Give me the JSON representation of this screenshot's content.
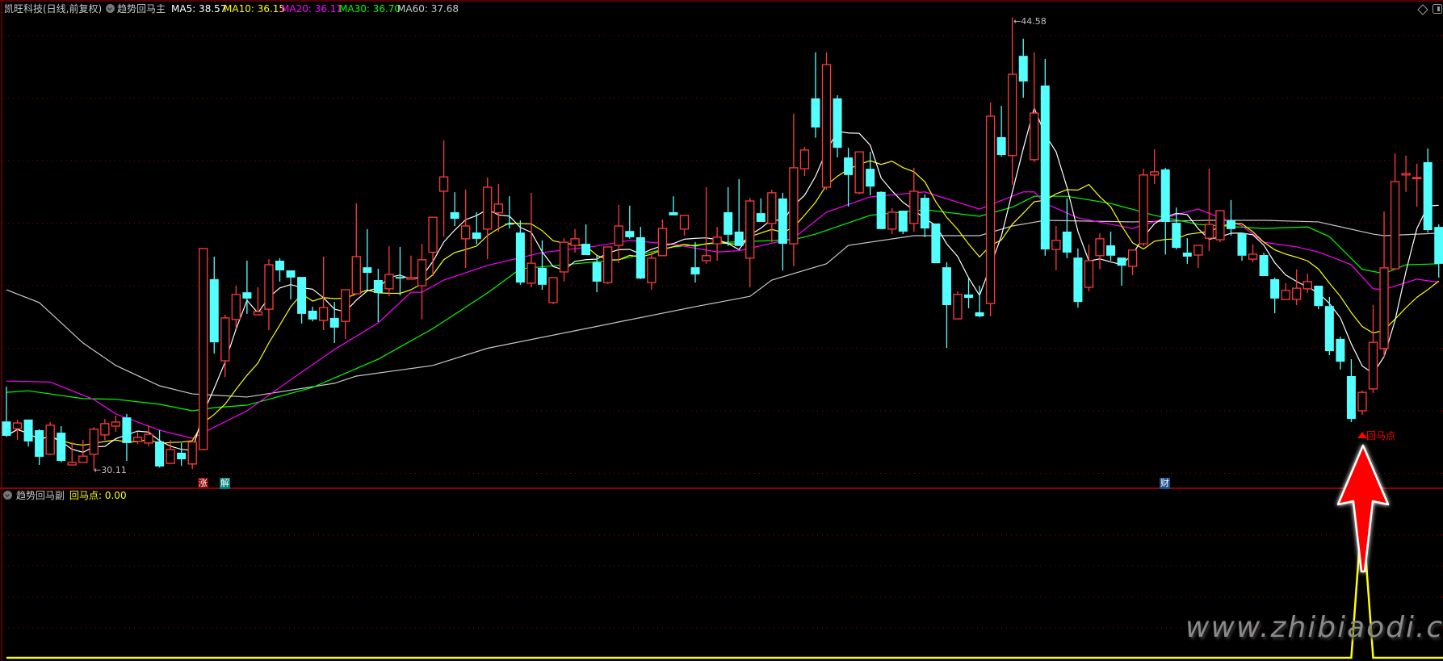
{
  "header": {
    "stock": "凯旺科技(日线,前复权)",
    "indicator_main": "趋势回马主",
    "ma5": "MA5: 38.57",
    "ma10": "MA10: 36.15",
    "ma20": "MA20: 36.11",
    "ma30": "MA30: 36.70",
    "ma60": "MA60: 37.68"
  },
  "sub_panel": {
    "indicator": "趋势回马副",
    "value_label": "回马点: 0.00"
  },
  "badges": {
    "zhang": "涨",
    "jie": "解",
    "cai": "财"
  },
  "signal_label": "回马点",
  "high_label": "44.58",
  "low_label": "30.11",
  "watermark": "www.zhibiaodi.com",
  "colors": {
    "up": "#ff3b3b",
    "down": "#54ffff",
    "ma5": "#ffffff",
    "ma10": "#ffff00",
    "ma20": "#ff00ff",
    "ma30": "#00ff00",
    "ma60": "#c8c8c8",
    "signal": "#ffff00",
    "grid": "#8b0000"
  },
  "chart_data": {
    "type": "candlestick",
    "price_ylim": [
      30,
      44.58
    ],
    "price_gridlines": [
      44,
      42,
      40,
      38,
      36,
      34,
      32,
      30
    ],
    "high": {
      "index": 92,
      "value": 44.58
    },
    "low": {
      "index": 8,
      "value": 30.11
    },
    "ohlc": [
      [
        31.66,
        32.77,
        31.17,
        31.2
      ],
      [
        31.43,
        31.72,
        31.07,
        31.61
      ],
      [
        31.72,
        31.72,
        30.86,
        31.02
      ],
      [
        31.38,
        31.41,
        30.27,
        30.53
      ],
      [
        30.61,
        31.64,
        30.58,
        31.54
      ],
      [
        31.3,
        31.51,
        30.35,
        30.4
      ],
      [
        30.27,
        31.0,
        30.27,
        30.35
      ],
      [
        30.35,
        31.07,
        30.35,
        30.55
      ],
      [
        30.61,
        31.48,
        30.11,
        31.41
      ],
      [
        31.23,
        31.74,
        31.07,
        31.59
      ],
      [
        31.51,
        31.85,
        31.33,
        31.64
      ],
      [
        31.79,
        31.9,
        30.4,
        30.97
      ],
      [
        31.02,
        31.33,
        30.94,
        31.15
      ],
      [
        30.97,
        31.54,
        30.86,
        31.25
      ],
      [
        31.02,
        31.38,
        30.19,
        30.22
      ],
      [
        30.32,
        31.07,
        30.32,
        30.76
      ],
      [
        30.66,
        30.97,
        30.24,
        30.45
      ],
      [
        30.3,
        31.02,
        30.14,
        31.0
      ],
      [
        30.76,
        37.19,
        30.74,
        37.19
      ],
      [
        36.21,
        36.93,
        33.83,
        34.19
      ],
      [
        33.6,
        35.07,
        33.08,
        34.97
      ],
      [
        34.92,
        36.0,
        34.63,
        35.72
      ],
      [
        35.79,
        36.8,
        35.1,
        35.59
      ],
      [
        35.07,
        35.95,
        35.07,
        35.17
      ],
      [
        35.25,
        36.85,
        34.58,
        36.67
      ],
      [
        36.8,
        36.88,
        36.13,
        36.49
      ],
      [
        36.49,
        36.49,
        35.56,
        36.26
      ],
      [
        36.28,
        36.28,
        34.79,
        35.1
      ],
      [
        35.2,
        35.33,
        34.86,
        34.92
      ],
      [
        34.89,
        36.93,
        34.58,
        35.3
      ],
      [
        34.97,
        35.48,
        34.17,
        34.66
      ],
      [
        34.86,
        35.87,
        34.3,
        35.87
      ],
      [
        35.74,
        38.63,
        35.74,
        36.93
      ],
      [
        36.59,
        37.81,
        35.85,
        36.41
      ],
      [
        36.18,
        36.54,
        34.84,
        35.77
      ],
      [
        35.9,
        37.26,
        35.66,
        36.36
      ],
      [
        36.28,
        37.24,
        35.69,
        36.23
      ],
      [
        36.21,
        36.96,
        36.21,
        36.26
      ],
      [
        36.0,
        37.34,
        34.92,
        36.83
      ],
      [
        37.07,
        38.19,
        36.31,
        38.19
      ],
      [
        39.02,
        40.65,
        37.57,
        39.48
      ],
      [
        38.35,
        38.99,
        37.91,
        38.14
      ],
      [
        37.5,
        39.07,
        36.57,
        37.91
      ],
      [
        37.7,
        38.35,
        37.32,
        37.5
      ],
      [
        37.81,
        39.46,
        36.85,
        39.15
      ],
      [
        38.33,
        39.25,
        37.73,
        38.61
      ],
      [
        37.99,
        38.86,
        37.83,
        37.96
      ],
      [
        37.7,
        38.09,
        36.03,
        36.1
      ],
      [
        36.08,
        38.97,
        35.95,
        36.72
      ],
      [
        36.57,
        37.45,
        35.87,
        36.03
      ],
      [
        35.46,
        36.26,
        35.41,
        36.26
      ],
      [
        36.44,
        37.52,
        36.13,
        37.39
      ],
      [
        37.29,
        37.81,
        37.06,
        37.5
      ],
      [
        37.34,
        37.96,
        36.98,
        36.98
      ],
      [
        36.75,
        36.96,
        35.79,
        36.13
      ],
      [
        36.1,
        37.24,
        36.05,
        37.24
      ],
      [
        37.29,
        38.58,
        36.72,
        37.91
      ],
      [
        37.75,
        38.56,
        37.5,
        37.55
      ],
      [
        37.55,
        37.88,
        36.21,
        36.23
      ],
      [
        36.1,
        37.08,
        35.87,
        36.88
      ],
      [
        36.96,
        38.12,
        36.96,
        37.83
      ],
      [
        38.35,
        38.86,
        38.25,
        38.25
      ],
      [
        37.81,
        38.25,
        37.6,
        38.25
      ],
      [
        36.59,
        37.39,
        36.1,
        36.36
      ],
      [
        36.8,
        39.15,
        36.7,
        36.96
      ],
      [
        37.34,
        37.88,
        36.8,
        37.55
      ],
      [
        38.35,
        39.15,
        37.27,
        37.63
      ],
      [
        37.73,
        39.41,
        37.27,
        37.27
      ],
      [
        36.88,
        38.81,
        35.95,
        38.71
      ],
      [
        38.32,
        38.79,
        38.04,
        38.04
      ],
      [
        37.99,
        39.07,
        37.39,
        38.97
      ],
      [
        38.79,
        38.97,
        36.49,
        37.34
      ],
      [
        37.34,
        41.5,
        36.62,
        39.77
      ],
      [
        39.74,
        40.44,
        39.51,
        40.34
      ],
      [
        41.99,
        43.46,
        40.73,
        41.06
      ],
      [
        39.15,
        43.46,
        39.07,
        43.07
      ],
      [
        41.99,
        42.09,
        40.1,
        40.41
      ],
      [
        40.1,
        40.41,
        38.53,
        39.54
      ],
      [
        38.97,
        40.28,
        38.92,
        40.28
      ],
      [
        39.74,
        40.28,
        38.89,
        39.17
      ],
      [
        39.0,
        39.02,
        37.81,
        37.81
      ],
      [
        37.81,
        38.48,
        37.65,
        38.35
      ],
      [
        38.4,
        38.4,
        37.65,
        37.73
      ],
      [
        37.99,
        39.77,
        37.73,
        39.02
      ],
      [
        38.81,
        38.92,
        37.55,
        37.83
      ],
      [
        37.99,
        37.99,
        36.72,
        36.72
      ],
      [
        36.59,
        36.75,
        34.01,
        35.38
      ],
      [
        34.94,
        35.82,
        34.92,
        35.72
      ],
      [
        35.72,
        36.23,
        35.28,
        35.61
      ],
      [
        35.15,
        36.0,
        34.99,
        35.02
      ],
      [
        35.43,
        41.86,
        35.02,
        41.42
      ],
      [
        40.75,
        41.75,
        40.13,
        40.18
      ],
      [
        40.16,
        44.58,
        39.23,
        42.76
      ],
      [
        43.35,
        43.9,
        42.01,
        42.53
      ],
      [
        40.03,
        43.46,
        39.95,
        41.52
      ],
      [
        42.4,
        43.25,
        36.96,
        37.16
      ],
      [
        37.16,
        37.91,
        36.49,
        37.45
      ],
      [
        37.73,
        38.79,
        36.88,
        37.06
      ],
      [
        36.9,
        37.19,
        35.3,
        35.48
      ],
      [
        35.95,
        37.32,
        35.82,
        36.8
      ],
      [
        36.96,
        37.68,
        36.52,
        37.5
      ],
      [
        37.29,
        37.73,
        36.8,
        36.96
      ],
      [
        36.9,
        36.9,
        36.0,
        36.64
      ],
      [
        36.62,
        37.14,
        36.34,
        37.14
      ],
      [
        37.34,
        39.74,
        37.27,
        39.54
      ],
      [
        39.54,
        40.36,
        39.25,
        39.64
      ],
      [
        39.72,
        39.77,
        37.0,
        38.04
      ],
      [
        38.01,
        38.5,
        37.16,
        37.21
      ],
      [
        37.06,
        37.52,
        36.7,
        36.93
      ],
      [
        36.98,
        37.29,
        36.57,
        37.29
      ],
      [
        37.52,
        39.74,
        37.11,
        37.96
      ],
      [
        37.47,
        38.4,
        37.39,
        38.4
      ],
      [
        38.09,
        38.74,
        37.6,
        37.81
      ],
      [
        37.68,
        37.68,
        36.8,
        36.96
      ],
      [
        36.85,
        37.32,
        36.75,
        37.01
      ],
      [
        36.98,
        37.06,
        36.31,
        36.31
      ],
      [
        36.21,
        36.26,
        35.12,
        35.59
      ],
      [
        35.56,
        36.08,
        35.54,
        35.85
      ],
      [
        35.56,
        36.52,
        35.38,
        35.92
      ],
      [
        35.9,
        36.39,
        35.77,
        36.13
      ],
      [
        36.0,
        36.0,
        35.25,
        35.35
      ],
      [
        35.35,
        35.64,
        33.78,
        33.91
      ],
      [
        34.3,
        34.37,
        33.32,
        33.57
      ],
      [
        33.11,
        33.65,
        31.64,
        31.74
      ],
      [
        32.0,
        32.65,
        31.87,
        32.59
      ],
      [
        32.7,
        35.38,
        32.57,
        34.19
      ],
      [
        33.99,
        38.37,
        33.73,
        36.57
      ],
      [
        36.54,
        40.23,
        36.54,
        39.33
      ],
      [
        39.54,
        40.16,
        39.0,
        39.59
      ],
      [
        39.46,
        39.9,
        38.53,
        39.46
      ],
      [
        39.95,
        40.39,
        37.7,
        37.78
      ],
      [
        37.88,
        37.96,
        36.26,
        36.7
      ]
    ],
    "ma20": [
      [
        0,
        32.95
      ],
      [
        4,
        32.92
      ],
      [
        8,
        32.36
      ],
      [
        10,
        31.9
      ],
      [
        14,
        31.38
      ],
      [
        17,
        31.12
      ],
      [
        18,
        31.3
      ],
      [
        22,
        32.0
      ],
      [
        25,
        32.75
      ],
      [
        30,
        33.96
      ],
      [
        34,
        34.81
      ],
      [
        37,
        35.79
      ],
      [
        38,
        35.79
      ],
      [
        40,
        36.18
      ],
      [
        44,
        36.65
      ],
      [
        49,
        37.06
      ],
      [
        54,
        37.27
      ],
      [
        57,
        37.45
      ],
      [
        61,
        37.32
      ],
      [
        65,
        37.08
      ],
      [
        67,
        37.12
      ],
      [
        72,
        37.52
      ],
      [
        75,
        38.35
      ],
      [
        79,
        38.84
      ],
      [
        84,
        39.0
      ],
      [
        89,
        38.45
      ],
      [
        93,
        39.0
      ],
      [
        94,
        39.0
      ],
      [
        95,
        38.63
      ],
      [
        98,
        38.17
      ],
      [
        103,
        37.83
      ],
      [
        107,
        38.27
      ],
      [
        109,
        38.45
      ],
      [
        113,
        37.91
      ],
      [
        115,
        37.39
      ],
      [
        118,
        37.24
      ],
      [
        120,
        37.08
      ],
      [
        123,
        36.67
      ],
      [
        125,
        35.9
      ],
      [
        126,
        35.88
      ],
      [
        129,
        36.21
      ],
      [
        131,
        36.11
      ]
    ],
    "ma30": [
      [
        0,
        32.59
      ],
      [
        2,
        32.64
      ],
      [
        7,
        32.39
      ],
      [
        10,
        32.37
      ],
      [
        14,
        32.21
      ],
      [
        17,
        32.0
      ],
      [
        19,
        32.1
      ],
      [
        22,
        32.18
      ],
      [
        28,
        32.75
      ],
      [
        34,
        33.65
      ],
      [
        39,
        34.63
      ],
      [
        44,
        35.77
      ],
      [
        47,
        36.54
      ],
      [
        51,
        36.67
      ],
      [
        56,
        36.83
      ],
      [
        61,
        37.24
      ],
      [
        66,
        37.39
      ],
      [
        72,
        37.47
      ],
      [
        74,
        37.65
      ],
      [
        79,
        38.25
      ],
      [
        84,
        38.43
      ],
      [
        89,
        38.22
      ],
      [
        92,
        38.51
      ],
      [
        94,
        38.86
      ],
      [
        97,
        38.86
      ],
      [
        101,
        38.63
      ],
      [
        105,
        38.25
      ],
      [
        109,
        37.96
      ],
      [
        115,
        37.83
      ],
      [
        119,
        37.88
      ],
      [
        121,
        37.57
      ],
      [
        124,
        36.52
      ],
      [
        126,
        36.39
      ],
      [
        128,
        36.67
      ],
      [
        131,
        36.7
      ]
    ],
    "ma60": [
      [
        0,
        35.87
      ],
      [
        3,
        35.46
      ],
      [
        7,
        34.17
      ],
      [
        10,
        33.45
      ],
      [
        14,
        32.8
      ],
      [
        17,
        32.54
      ],
      [
        22,
        32.44
      ],
      [
        30,
        32.88
      ],
      [
        32,
        33.11
      ],
      [
        39,
        33.45
      ],
      [
        44,
        34.0
      ],
      [
        63,
        35.33
      ],
      [
        68,
        35.66
      ],
      [
        70,
        36.18
      ],
      [
        75,
        36.7
      ],
      [
        77,
        37.29
      ],
      [
        83,
        37.6
      ],
      [
        89,
        37.6
      ],
      [
        92,
        37.91
      ],
      [
        95,
        38.09
      ],
      [
        103,
        38.04
      ],
      [
        110,
        38.09
      ],
      [
        115,
        38.09
      ],
      [
        120,
        38.04
      ],
      [
        125,
        37.65
      ],
      [
        126,
        37.6
      ],
      [
        131,
        37.68
      ]
    ],
    "signal": {
      "name": "回马点",
      "nonzero": {
        "124": 1
      },
      "last": 0.0
    }
  }
}
